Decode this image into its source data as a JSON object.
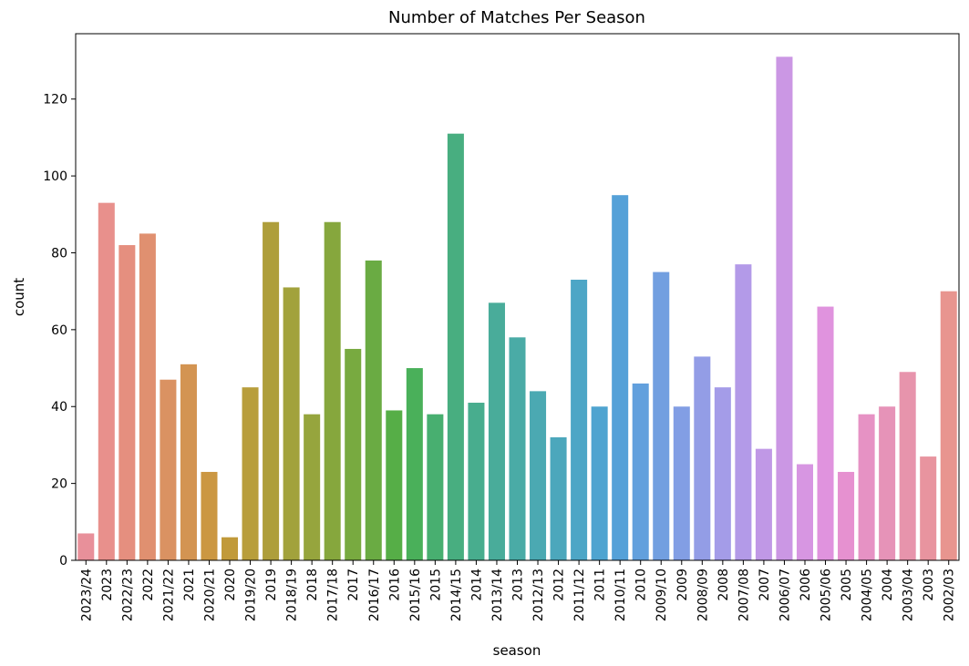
{
  "chart_data": {
    "type": "bar",
    "title": "Number of Matches Per Season",
    "xlabel": "season",
    "ylabel": "count",
    "ylim": [
      0,
      137
    ],
    "yticks": [
      0,
      20,
      40,
      60,
      80,
      100,
      120
    ],
    "grid": false,
    "legend": "none",
    "categories": [
      "2023/24",
      "2023",
      "2022/23",
      "2022",
      "2021/22",
      "2021",
      "2020/21",
      "2020",
      "2019/20",
      "2019",
      "2018/19",
      "2018",
      "2017/18",
      "2017",
      "2016/17",
      "2016",
      "2015/16",
      "2015",
      "2014/15",
      "2014",
      "2013/14",
      "2013",
      "2012/13",
      "2012",
      "2011/12",
      "2011",
      "2010/11",
      "2010",
      "2009/10",
      "2009",
      "2008/09",
      "2008",
      "2007/08",
      "2007",
      "2006/07",
      "2006",
      "2005/06",
      "2005",
      "2004/05",
      "2004",
      "2003/04",
      "2003",
      "2002/03"
    ],
    "values": [
      7,
      93,
      82,
      85,
      47,
      51,
      23,
      6,
      45,
      88,
      71,
      38,
      88,
      55,
      78,
      39,
      50,
      38,
      111,
      41,
      67,
      58,
      44,
      32,
      73,
      40,
      95,
      46,
      75,
      40,
      53,
      45,
      77,
      29,
      131,
      25,
      66,
      23,
      38,
      40,
      49,
      27,
      70
    ],
    "colors": [
      "#e8909a",
      "#e8908c",
      "#e58f7f",
      "#e09070",
      "#da9262",
      "#d39452",
      "#cb9742",
      "#c19a3a",
      "#b89e3c",
      "#ae9e3b",
      "#a2a23c",
      "#96a53d",
      "#86a73d",
      "#78aa40",
      "#6aab43",
      "#56ae47",
      "#4ab05a",
      "#48af70",
      "#48ae80",
      "#48ad8e",
      "#49ac9a",
      "#4aaba6",
      "#4ba9b2",
      "#4ca7bc",
      "#4da6c6",
      "#4fa4d0",
      "#55a1d8",
      "#62a0dd",
      "#729fe0",
      "#829ee4",
      "#939de6",
      "#a49ce8",
      "#b39ae8",
      "#c098e6",
      "#cb97e4",
      "#d796e2",
      "#e093de",
      "#e691d0",
      "#e692c4",
      "#e693b8",
      "#e794ac",
      "#e8949f",
      "#e8958f"
    ]
  }
}
